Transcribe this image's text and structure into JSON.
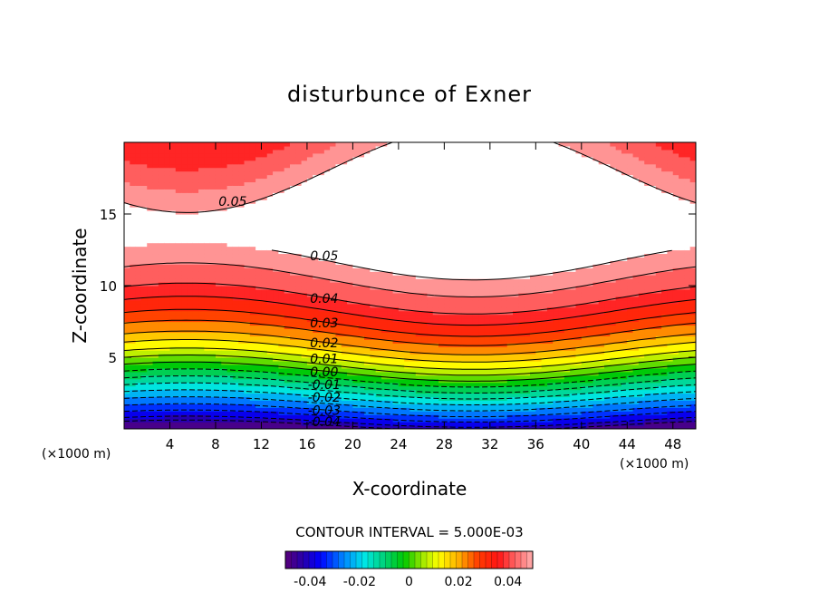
{
  "chart_data": {
    "type": "contour",
    "title": "disturbunce of Exner",
    "xlabel": "X-coordinate",
    "ylabel": "Z-coordinate",
    "x_unit_label": "(×1000 m)",
    "y_unit_label": "(×1000 m)",
    "xlim": [
      0,
      50
    ],
    "ylim": [
      0,
      20
    ],
    "x_ticks": [
      4,
      8,
      12,
      16,
      20,
      24,
      28,
      32,
      36,
      40,
      44,
      48
    ],
    "y_ticks": [
      5,
      10,
      15
    ],
    "contour_interval_text": "CONTOUR INTERVAL = 5.000E-03",
    "contour_interval": 0.005,
    "field_range": [
      -0.05,
      0.05
    ],
    "contour_labels": [
      {
        "text": "0.05",
        "x": 9.5,
        "z": 15.9
      },
      {
        "text": "0.05",
        "x": 17.5,
        "z": 12.1
      },
      {
        "text": "0.04",
        "x": 17.5,
        "z": 9.1
      },
      {
        "text": "0.03",
        "x": 17.5,
        "z": 7.4
      },
      {
        "text": "0.02",
        "x": 17.5,
        "z": 6.0
      },
      {
        "text": "0.01",
        "x": 17.5,
        "z": 4.9
      },
      {
        "text": "0.00",
        "x": 17.5,
        "z": 4.0
      },
      {
        "text": "-0.01",
        "x": 17.5,
        "z": 3.1
      },
      {
        "text": "-0.02",
        "x": 17.5,
        "z": 2.2
      },
      {
        "text": "-0.03",
        "x": 17.5,
        "z": 1.3
      },
      {
        "text": "-0.04",
        "x": 17.5,
        "z": 0.5
      }
    ],
    "colorbar": {
      "range": [
        -0.05,
        0.05
      ],
      "ticks": [
        -0.04,
        -0.02,
        0,
        0.02,
        0.04
      ],
      "tick_labels": [
        "-0.04",
        "-0.02",
        "0",
        "0.02",
        "0.04"
      ]
    },
    "colors": {
      "above_range": "#ffffff",
      "contour_line": "#000000"
    }
  }
}
